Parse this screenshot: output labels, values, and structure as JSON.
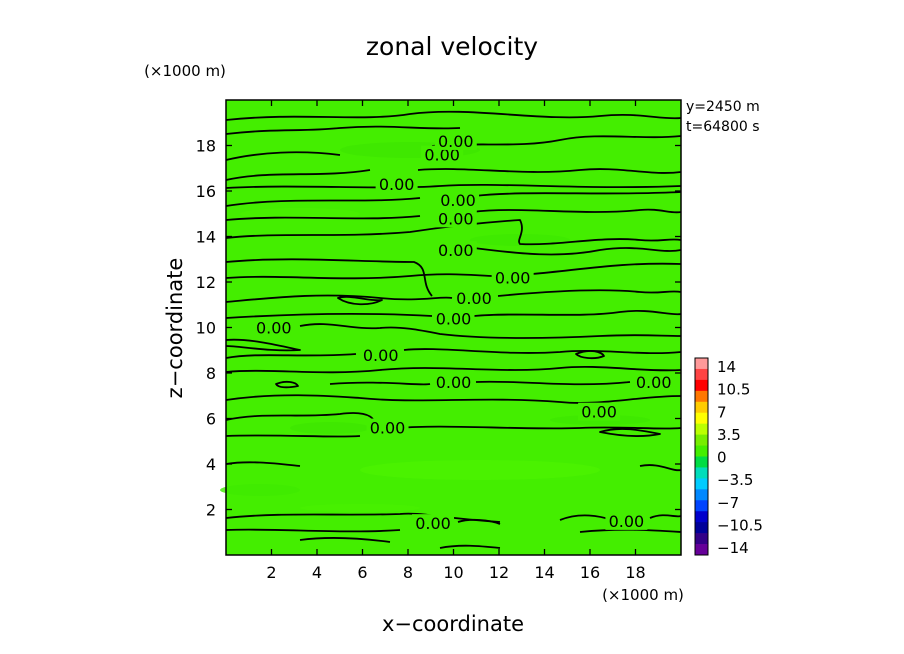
{
  "chart_data": {
    "type": "contour",
    "title": "zonal velocity",
    "xlabel": "x−coordinate",
    "ylabel": "z−coordinate",
    "x_unit": "(×1000 m)",
    "y_unit": "(×1000 m)",
    "xlim": [
      0,
      20
    ],
    "ylim": [
      0,
      20
    ],
    "xticks": [
      2,
      4,
      6,
      8,
      10,
      12,
      14,
      16,
      18
    ],
    "yticks": [
      2,
      4,
      6,
      8,
      10,
      12,
      14,
      16,
      18
    ],
    "info": [
      "y=2450 m",
      "t=64800 s"
    ],
    "field_color": "#44ee00",
    "contour_level": 0,
    "contour_labels": [
      {
        "x": 9.5,
        "z": 17.6,
        "text": "0.00"
      },
      {
        "x": 10.1,
        "z": 18.2,
        "text": "0.00"
      },
      {
        "x": 7.5,
        "z": 16.3,
        "text": "0.00"
      },
      {
        "x": 10.2,
        "z": 15.6,
        "text": "0.00"
      },
      {
        "x": 10.1,
        "z": 14.8,
        "text": "0.00"
      },
      {
        "x": 10.1,
        "z": 13.4,
        "text": "0.00"
      },
      {
        "x": 12.6,
        "z": 12.2,
        "text": "0.00"
      },
      {
        "x": 10.9,
        "z": 11.3,
        "text": "0.00"
      },
      {
        "x": 10.0,
        "z": 10.4,
        "text": "0.00"
      },
      {
        "x": 2.1,
        "z": 10.0,
        "text": "0.00"
      },
      {
        "x": 6.8,
        "z": 8.8,
        "text": "0.00"
      },
      {
        "x": 10.0,
        "z": 7.6,
        "text": "0.00"
      },
      {
        "x": 18.8,
        "z": 7.6,
        "text": "0.00"
      },
      {
        "x": 16.4,
        "z": 6.3,
        "text": "0.00"
      },
      {
        "x": 7.1,
        "z": 5.6,
        "text": "0.00"
      },
      {
        "x": 9.1,
        "z": 1.4,
        "text": "0.00"
      },
      {
        "x": 17.6,
        "z": 1.5,
        "text": "0.00"
      }
    ],
    "colorbar": {
      "ticks": [
        "14",
        "10.5",
        "7",
        "3.5",
        "0",
        "−3.5",
        "−7",
        "−10.5",
        "−14"
      ],
      "colors": [
        "#ff9999",
        "#ff4444",
        "#ff0000",
        "#ff7700",
        "#ffcc00",
        "#ffff00",
        "#bbff00",
        "#77ee00",
        "#44ee00",
        "#00dd44",
        "#00ddbb",
        "#00ccff",
        "#0088ff",
        "#0044ff",
        "#0000cc",
        "#000099",
        "#330088",
        "#660099"
      ]
    }
  }
}
